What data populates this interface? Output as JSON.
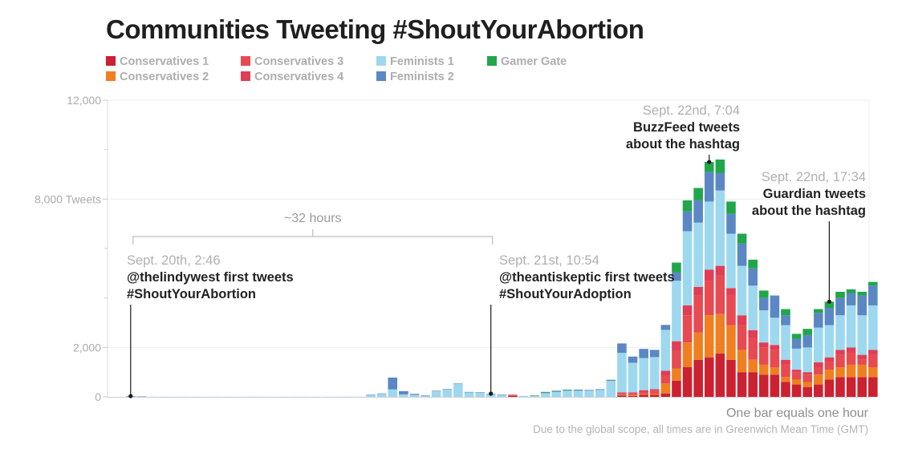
{
  "title": "Communities Tweeting #ShoutYourAbortion",
  "legend": [
    {
      "name": "Conservatives 1",
      "color": "#cc2131"
    },
    {
      "name": "Conservatives 2",
      "color": "#f07f22"
    },
    {
      "name": "Conservatives 3",
      "color": "#e84a51"
    },
    {
      "name": "Conservatives 4",
      "color": "#df3e56"
    },
    {
      "name": "Feminists 1",
      "color": "#9dd8ef"
    },
    {
      "name": "Feminists 2",
      "color": "#5b87c4"
    },
    {
      "name": "Gamer Gate",
      "color": "#21a64a"
    }
  ],
  "chart_data": {
    "type": "bar",
    "stacked": true,
    "x_unit": "hour (GMT)",
    "ylim": [
      0,
      12000
    ],
    "y_ticks": [
      {
        "value": 12000,
        "label": "12,000"
      },
      {
        "value": 8000,
        "label": "8,000 Tweets"
      },
      {
        "value": 2000,
        "label": "2,000"
      },
      {
        "value": 0,
        "label": "0"
      }
    ],
    "y_minor_ticks": [
      10000,
      6000,
      4000
    ],
    "series_order": [
      "Conservatives 1",
      "Conservatives 2",
      "Conservatives 3",
      "Conservatives 4",
      "Feminists 1",
      "Feminists 2",
      "Gamer Gate"
    ],
    "bars": [
      [
        0,
        0,
        0,
        0,
        20,
        10,
        0
      ],
      [
        0,
        0,
        0,
        0,
        10,
        5,
        0
      ],
      [
        0,
        0,
        0,
        0,
        5,
        0,
        0
      ],
      [
        0,
        0,
        0,
        0,
        5,
        0,
        0
      ],
      [
        0,
        0,
        0,
        0,
        5,
        0,
        0
      ],
      [
        0,
        0,
        0,
        0,
        5,
        0,
        0
      ],
      [
        0,
        0,
        0,
        0,
        5,
        0,
        0
      ],
      [
        0,
        0,
        0,
        0,
        5,
        0,
        0
      ],
      [
        0,
        0,
        0,
        0,
        5,
        0,
        0
      ],
      [
        0,
        0,
        0,
        0,
        5,
        0,
        0
      ],
      [
        0,
        0,
        0,
        0,
        5,
        0,
        0
      ],
      [
        0,
        0,
        0,
        0,
        5,
        0,
        0
      ],
      [
        0,
        0,
        0,
        0,
        5,
        0,
        0
      ],
      [
        0,
        0,
        0,
        0,
        5,
        0,
        0
      ],
      [
        0,
        0,
        0,
        0,
        5,
        0,
        0
      ],
      [
        0,
        0,
        0,
        0,
        5,
        0,
        0
      ],
      [
        0,
        0,
        0,
        0,
        5,
        0,
        0
      ],
      [
        0,
        0,
        0,
        0,
        5,
        0,
        0
      ],
      [
        0,
        0,
        0,
        0,
        5,
        0,
        0
      ],
      [
        0,
        0,
        0,
        0,
        5,
        0,
        0
      ],
      [
        0,
        0,
        0,
        0,
        5,
        0,
        0
      ],
      [
        0,
        0,
        0,
        0,
        5,
        0,
        0
      ],
      [
        0,
        0,
        0,
        0,
        80,
        10,
        0
      ],
      [
        0,
        0,
        0,
        0,
        120,
        20,
        0
      ],
      [
        0,
        0,
        0,
        0,
        300,
        480,
        0
      ],
      [
        0,
        0,
        0,
        0,
        100,
        130,
        0
      ],
      [
        0,
        0,
        0,
        0,
        80,
        40,
        0
      ],
      [
        0,
        0,
        0,
        0,
        40,
        20,
        0
      ],
      [
        0,
        0,
        0,
        0,
        230,
        20,
        0
      ],
      [
        0,
        0,
        0,
        0,
        300,
        20,
        0
      ],
      [
        0,
        0,
        0,
        0,
        520,
        20,
        0
      ],
      [
        0,
        0,
        0,
        0,
        180,
        20,
        0
      ],
      [
        0,
        0,
        0,
        0,
        170,
        20,
        0
      ],
      [
        0,
        0,
        0,
        0,
        120,
        10,
        0
      ],
      [
        0,
        0,
        0,
        0,
        90,
        10,
        0
      ],
      [
        40,
        0,
        30,
        20,
        0,
        0,
        0
      ],
      [
        0,
        0,
        0,
        0,
        40,
        0,
        0
      ],
      [
        0,
        0,
        0,
        0,
        40,
        0,
        20
      ],
      [
        0,
        0,
        0,
        0,
        150,
        30,
        20
      ],
      [
        0,
        0,
        0,
        0,
        200,
        30,
        20
      ],
      [
        0,
        0,
        0,
        0,
        250,
        30,
        10
      ],
      [
        0,
        0,
        0,
        0,
        250,
        30,
        10
      ],
      [
        0,
        0,
        0,
        0,
        250,
        30,
        0
      ],
      [
        0,
        0,
        0,
        0,
        280,
        30,
        0
      ],
      [
        0,
        0,
        0,
        0,
        650,
        30,
        10
      ],
      [
        60,
        30,
        60,
        30,
        1600,
        380,
        0
      ],
      [
        40,
        40,
        60,
        40,
        1200,
        250,
        0
      ],
      [
        80,
        30,
        100,
        60,
        1300,
        370,
        0
      ],
      [
        80,
        50,
        120,
        60,
        1300,
        290,
        0
      ],
      [
        140,
        400,
        320,
        200,
        1650,
        200,
        0
      ],
      [
        650,
        500,
        700,
        400,
        2450,
        330,
        400
      ],
      [
        1200,
        1000,
        1100,
        400,
        3000,
        800,
        450
      ],
      [
        1500,
        1100,
        1500,
        350,
        2600,
        900,
        500
      ],
      [
        1600,
        1700,
        1400,
        450,
        2750,
        1200,
        400
      ],
      [
        1750,
        1600,
        1550,
        400,
        3050,
        700,
        550
      ],
      [
        1500,
        1400,
        1200,
        300,
        2200,
        800,
        500
      ],
      [
        1000,
        900,
        1000,
        400,
        2000,
        900,
        400
      ],
      [
        1000,
        500,
        900,
        300,
        1800,
        700,
        350
      ],
      [
        900,
        400,
        700,
        200,
        1300,
        500,
        300
      ],
      [
        900,
        300,
        700,
        200,
        1100,
        900,
        0
      ],
      [
        600,
        200,
        500,
        200,
        1400,
        400,
        250
      ],
      [
        500,
        200,
        300,
        100,
        850,
        400,
        200
      ],
      [
        400,
        200,
        300,
        100,
        1000,
        500,
        250
      ],
      [
        500,
        400,
        300,
        200,
        1400,
        600,
        150
      ],
      [
        700,
        400,
        300,
        200,
        1300,
        700,
        250
      ],
      [
        800,
        400,
        500,
        200,
        1400,
        700,
        250
      ],
      [
        800,
        500,
        500,
        200,
        1700,
        500,
        150
      ],
      [
        800,
        500,
        200,
        200,
        1600,
        800,
        150
      ],
      [
        800,
        400,
        500,
        200,
        1800,
        800,
        150
      ]
    ],
    "bracket": {
      "label": "~32 hours",
      "from_index": 0,
      "to_index": 33
    },
    "annotations": [
      {
        "index": 0,
        "time": "Sept. 20th, 2:46",
        "text": [
          "@thelindywest first tweets",
          "#ShoutYourAbortion"
        ]
      },
      {
        "index": 33,
        "time": "Sept. 21st, 10:54",
        "text": [
          "@theantiskeptic first tweets",
          "#ShoutYourAdoption"
        ]
      },
      {
        "index": 53,
        "time": "Sept. 22nd, 7:04",
        "text": [
          "BuzzFeed tweets",
          "about the hashtag"
        ]
      },
      {
        "index": 64,
        "time": "Sept. 22nd, 17:34",
        "text": [
          "Guardian tweets",
          "about the hashtag"
        ]
      }
    ]
  },
  "footer": {
    "scale_note": "One bar equals one hour",
    "time_note": "Due to the global scope, all times are in Greenwich Mean Time (GMT)"
  }
}
